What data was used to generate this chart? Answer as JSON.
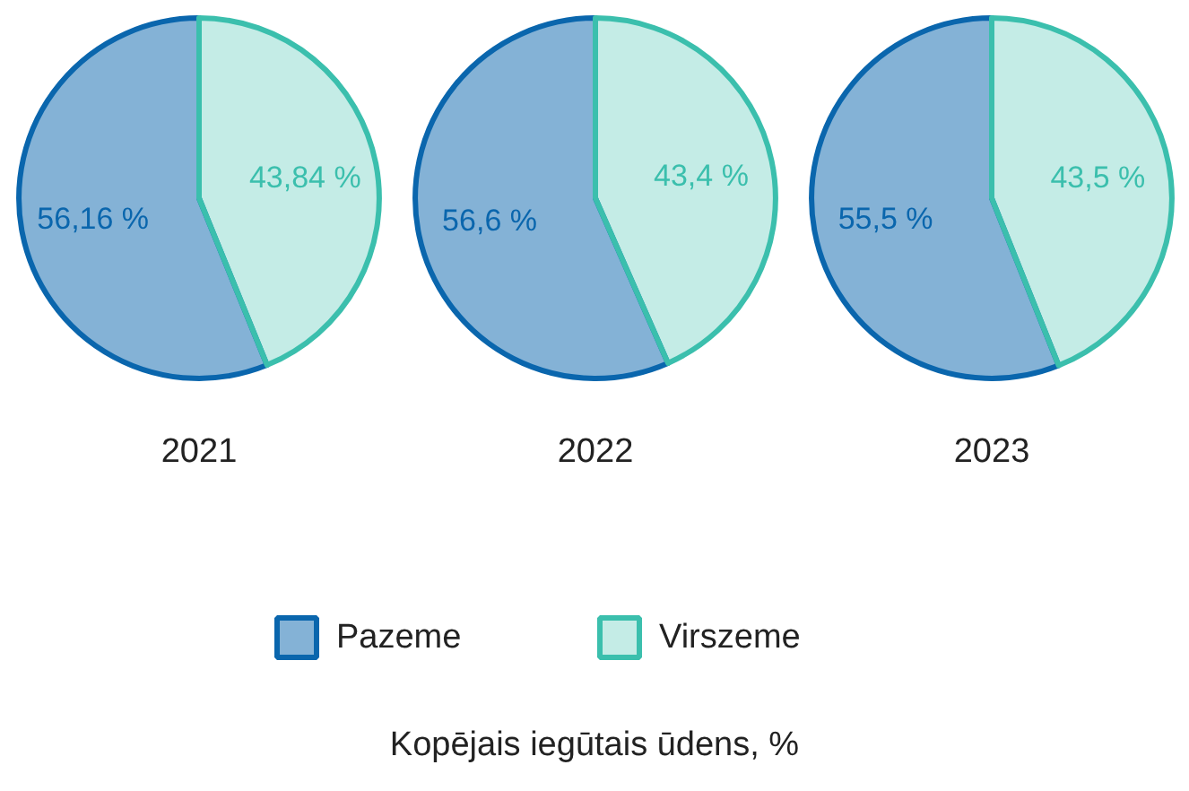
{
  "chart_data": [
    {
      "type": "pie",
      "title": "2021",
      "categories": [
        "Pazeme",
        "Virszeme"
      ],
      "values": [
        56.16,
        43.84
      ],
      "colors": [
        "#0a66ad",
        "#3bbfad"
      ],
      "value_labels": [
        "56,16 %",
        "43,84 %"
      ],
      "legend": "bottom",
      "annotations": [
        "Kopējais iegūtais ūdens, %"
      ]
    },
    {
      "type": "pie",
      "title": "2022",
      "categories": [
        null,
        null
      ],
      "values": [
        56.6,
        43.4
      ],
      "colors": [
        "#0a66ad",
        "#3bbfad"
      ],
      "value_labels": [
        "56,6 %",
        "43,4 %"
      ]
    },
    {
      "type": "pie",
      "title": "2023",
      "categories": [
        null,
        null
      ],
      "values": [
        55.5,
        43.5
      ],
      "colors": [
        "#0a66ad",
        "#3bbfad"
      ],
      "value_labels": [
        "55,5 %",
        "43,5 %"
      ]
    }
  ]
}
